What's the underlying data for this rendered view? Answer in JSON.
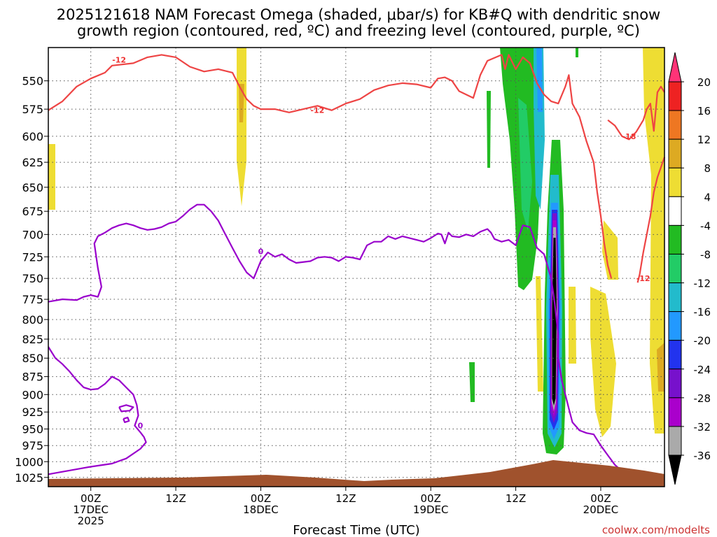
{
  "chart_data": {
    "type": "time-height",
    "title_line1": "2025121618 NAM Forecast Omega (shaded, μbar/s) for KB#Q with dendritic snow",
    "title_line2": "growth region (contoured, red, ºC) and freezing level (contoured, purple, ºC)",
    "xlabel": "Forecast Time (UTC)",
    "credit": "coolwx.com/modelts",
    "xlim_hours": [
      -6,
      81
    ],
    "x_ticks": [
      {
        "hour": 0,
        "line1": "00Z",
        "line2": "17DEC",
        "line3": "2025"
      },
      {
        "hour": 12,
        "line1": "12Z",
        "line2": "",
        "line3": ""
      },
      {
        "hour": 24,
        "line1": "00Z",
        "line2": "18DEC",
        "line3": ""
      },
      {
        "hour": 36,
        "line1": "12Z",
        "line2": "",
        "line3": ""
      },
      {
        "hour": 48,
        "line1": "00Z",
        "line2": "19DEC",
        "line3": ""
      },
      {
        "hour": 60,
        "line1": "12Z",
        "line2": "",
        "line3": ""
      },
      {
        "hour": 72,
        "line1": "00Z",
        "line2": "20DEC",
        "line3": ""
      }
    ],
    "ylabel": "",
    "ylim_hpa": [
      522,
      1040
    ],
    "y_ticks": [
      "550",
      "575",
      "600",
      "625",
      "650",
      "675",
      "700",
      "725",
      "750",
      "775",
      "800",
      "825",
      "850",
      "875",
      "900",
      "925",
      "950",
      "975",
      "1000",
      "1025"
    ],
    "colorbar": {
      "labels": [
        "20",
        "16",
        "12",
        "8",
        "4",
        "-4",
        "-8",
        "-12",
        "-16",
        "-20",
        "-24",
        "-28",
        "-32",
        "-36"
      ],
      "colors": [
        "#ff3377",
        "#ee2222",
        "#ee7722",
        "#ddaa22",
        "#eedd33",
        "#ffffff",
        "#22bb22",
        "#22cc66",
        "#22bbcc",
        "#2299ff",
        "#2233ee",
        "#7711cc",
        "#aa00cc",
        "#aaaaaa",
        "#000000"
      ]
    },
    "contour_labels": [
      {
        "text": "-12",
        "color": "red",
        "hour": 4,
        "hpa": 532
      },
      {
        "text": "-12",
        "color": "red",
        "hour": 32,
        "hpa": 576
      },
      {
        "text": "-18",
        "color": "red",
        "hour": 76,
        "hpa": 600
      },
      {
        "text": "-12",
        "color": "red",
        "hour": 78,
        "hpa": 750
      },
      {
        "text": "0",
        "color": "purple",
        "hour": 24,
        "hpa": 719
      },
      {
        "text": "0",
        "color": "purple",
        "hour": 7,
        "hpa": 945
      }
    ],
    "series": [
      {
        "name": "dgz_top_-12C",
        "color": "#ee4444",
        "points": [
          [
            -6,
            576
          ],
          [
            -4,
            568
          ],
          [
            -2,
            555
          ],
          [
            0,
            548
          ],
          [
            2,
            543
          ],
          [
            3,
            537
          ],
          [
            6,
            535
          ],
          [
            8,
            530
          ],
          [
            10,
            528
          ],
          [
            12,
            530
          ],
          [
            14,
            538
          ],
          [
            16,
            542
          ],
          [
            18,
            540
          ],
          [
            20,
            543
          ],
          [
            21,
            555
          ],
          [
            22,
            566
          ],
          [
            23,
            572
          ],
          [
            24,
            575
          ],
          [
            26,
            575
          ],
          [
            28,
            578
          ],
          [
            30,
            575
          ],
          [
            32,
            572
          ],
          [
            34,
            576
          ],
          [
            36,
            570
          ],
          [
            38,
            566
          ],
          [
            40,
            558
          ],
          [
            42,
            554
          ],
          [
            44,
            552
          ],
          [
            46,
            553
          ],
          [
            48,
            556
          ],
          [
            49,
            548
          ],
          [
            50,
            547
          ],
          [
            51,
            550
          ],
          [
            52,
            559
          ],
          [
            54,
            565
          ],
          [
            55,
            545
          ],
          [
            56,
            533
          ],
          [
            58,
            528
          ],
          [
            58.5,
            540
          ],
          [
            59,
            528
          ],
          [
            60,
            540
          ],
          [
            61,
            530
          ],
          [
            62,
            535
          ],
          [
            63,
            552
          ],
          [
            64,
            562
          ],
          [
            65,
            568
          ],
          [
            66,
            570
          ],
          [
            67,
            555
          ],
          [
            67.5,
            545
          ],
          [
            68,
            570
          ],
          [
            69,
            582
          ],
          [
            70,
            605
          ],
          [
            71,
            625
          ],
          [
            71.5,
            655
          ],
          [
            72,
            680
          ],
          [
            72.5,
            710
          ],
          [
            73,
            735
          ],
          [
            73.5,
            750
          ]
        ]
      },
      {
        "name": "dgz_upper_right",
        "color": "#ee4444",
        "points": [
          [
            73,
            585
          ],
          [
            74,
            590
          ],
          [
            75,
            600
          ],
          [
            76,
            603
          ],
          [
            77,
            596
          ],
          [
            78,
            585
          ],
          [
            78.5,
            575
          ],
          [
            79,
            570
          ],
          [
            79.5,
            595
          ],
          [
            80,
            560
          ],
          [
            80.5,
            555
          ],
          [
            81,
            560
          ]
        ]
      },
      {
        "name": "dgz_lower_right",
        "color": "#ee4444",
        "points": [
          [
            81,
            620
          ],
          [
            80,
            640
          ],
          [
            79.5,
            655
          ],
          [
            79,
            680
          ],
          [
            78.5,
            700
          ],
          [
            78,
            720
          ],
          [
            77.5,
            745
          ],
          [
            77.2,
            755
          ]
        ]
      },
      {
        "name": "freezing_level_upper",
        "color": "#9900cc",
        "points": [
          [
            -6,
            778
          ],
          [
            -4,
            775
          ],
          [
            -2,
            776
          ],
          [
            -1,
            772
          ],
          [
            0,
            770
          ],
          [
            1,
            772
          ],
          [
            1.5,
            760
          ],
          [
            1,
            738
          ],
          [
            0.5,
            710
          ],
          [
            1,
            702
          ],
          [
            2,
            698
          ],
          [
            3,
            693
          ],
          [
            4,
            690
          ],
          [
            5,
            688
          ],
          [
            6,
            690
          ],
          [
            7,
            693
          ],
          [
            8,
            695
          ],
          [
            9,
            694
          ],
          [
            10,
            692
          ],
          [
            11,
            688
          ],
          [
            12,
            686
          ],
          [
            13,
            680
          ],
          [
            14,
            673
          ],
          [
            15,
            668
          ],
          [
            16,
            668
          ],
          [
            17,
            675
          ],
          [
            18,
            685
          ],
          [
            19,
            700
          ],
          [
            20,
            715
          ],
          [
            21,
            730
          ],
          [
            22,
            743
          ],
          [
            23,
            750
          ],
          [
            24,
            730
          ],
          [
            25,
            720
          ],
          [
            26,
            725
          ],
          [
            27,
            722
          ],
          [
            28,
            728
          ],
          [
            29,
            732
          ],
          [
            31,
            730
          ],
          [
            32,
            726
          ],
          [
            33,
            725
          ],
          [
            34,
            726
          ],
          [
            35,
            730
          ],
          [
            36,
            725
          ],
          [
            37,
            726
          ],
          [
            38,
            728
          ],
          [
            39,
            712
          ],
          [
            40,
            708
          ],
          [
            41,
            708
          ],
          [
            42,
            702
          ],
          [
            43,
            705
          ],
          [
            44,
            702
          ],
          [
            46,
            706
          ],
          [
            47,
            708
          ],
          [
            48,
            704
          ],
          [
            49,
            699
          ],
          [
            49.5,
            700
          ],
          [
            50,
            710
          ],
          [
            50.5,
            698
          ],
          [
            51,
            702
          ],
          [
            52,
            703
          ],
          [
            53,
            700
          ],
          [
            54,
            702
          ],
          [
            55,
            697
          ],
          [
            56,
            694
          ],
          [
            56.5,
            698
          ],
          [
            57,
            705
          ],
          [
            58,
            708
          ],
          [
            59,
            706
          ],
          [
            60,
            712
          ],
          [
            61,
            690
          ],
          [
            62,
            692
          ],
          [
            63,
            715
          ],
          [
            64,
            722
          ],
          [
            65,
            750
          ],
          [
            65.5,
            780
          ],
          [
            66,
            820
          ],
          [
            66,
            850
          ],
          [
            66.5,
            880
          ],
          [
            67,
            900
          ],
          [
            67.5,
            920
          ],
          [
            68,
            940
          ],
          [
            69,
            952
          ],
          [
            70,
            956
          ],
          [
            71,
            958
          ],
          [
            72,
            975
          ],
          [
            73,
            990
          ],
          [
            74,
            1005
          ],
          [
            75,
            1015
          ],
          [
            76,
            1020
          ],
          [
            76.5,
            1024
          ]
        ]
      },
      {
        "name": "freezing_level_lower",
        "color": "#9900cc",
        "points": [
          [
            -6,
            835
          ],
          [
            -5,
            850
          ],
          [
            -4,
            858
          ],
          [
            -3,
            868
          ],
          [
            -2,
            880
          ],
          [
            -1,
            890
          ],
          [
            0,
            893
          ],
          [
            1,
            892
          ],
          [
            2,
            885
          ],
          [
            3,
            875
          ],
          [
            4,
            880
          ],
          [
            5,
            890
          ],
          [
            6,
            900
          ],
          [
            6.5,
            915
          ],
          [
            6.7,
            930
          ],
          [
            6.2,
            945
          ],
          [
            7,
            955
          ],
          [
            7.5,
            962
          ],
          [
            7.8,
            970
          ],
          [
            7,
            980
          ],
          [
            5,
            995
          ],
          [
            3,
            1003
          ],
          [
            0,
            1008
          ],
          [
            -2,
            1012
          ],
          [
            -4,
            1016
          ],
          [
            -6,
            1020
          ]
        ]
      },
      {
        "name": "freezing_level_blob",
        "color": "#9900cc",
        "points": [
          [
            4,
            918
          ],
          [
            5,
            915
          ],
          [
            6,
            918
          ],
          [
            5.5,
            923
          ],
          [
            4.3,
            924
          ],
          [
            4,
            918
          ]
        ]
      },
      {
        "name": "freezing_level_blob2",
        "color": "#9900cc",
        "points": [
          [
            4.6,
            935
          ],
          [
            5.2,
            933
          ],
          [
            5.4,
            938
          ],
          [
            4.8,
            940
          ],
          [
            4.6,
            935
          ]
        ]
      }
    ]
  }
}
